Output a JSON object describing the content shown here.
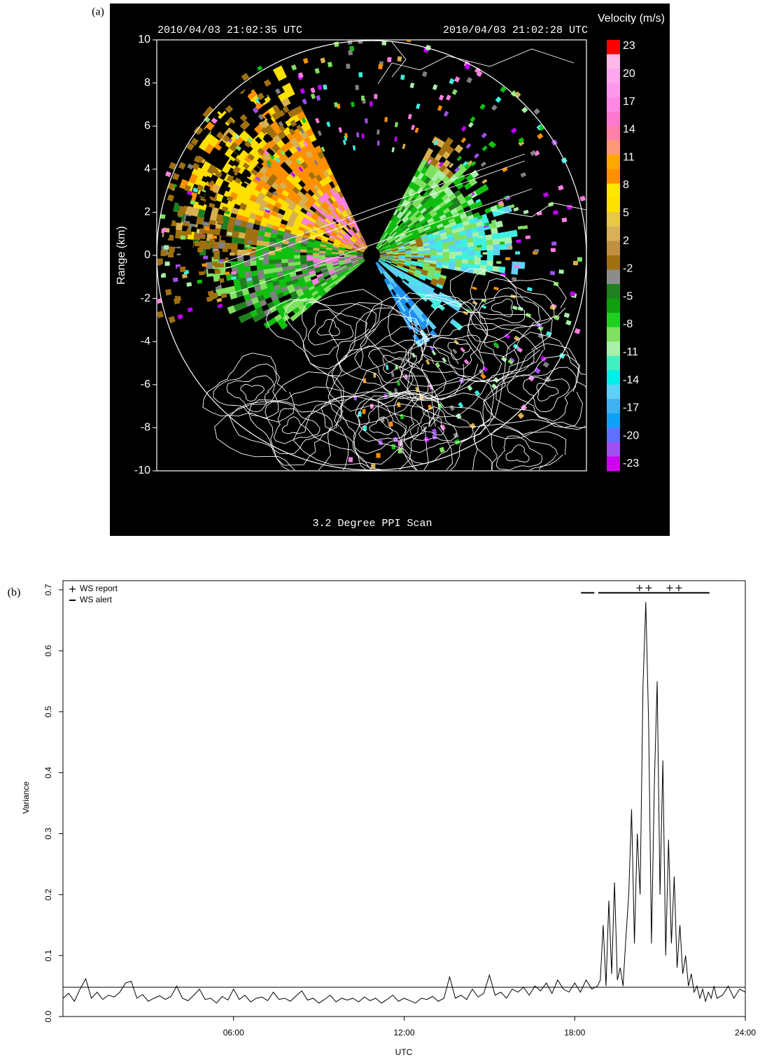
{
  "chart_data": [
    {
      "type": "ppi",
      "panel_label": "(a)",
      "timestamps": [
        "2010/04/03 21:02:35 UTC",
        "2010/04/03 21:02:28 UTC"
      ],
      "ylabel": "Range (km)",
      "ylim": [
        -10,
        10
      ],
      "yticks": [
        10,
        8,
        6,
        4,
        2,
        0,
        -2,
        -4,
        -6,
        -8,
        -10
      ],
      "colorbar": {
        "title": "Velocity (m/s)",
        "ticks": [
          23,
          20,
          17,
          14,
          11,
          8,
          5,
          2,
          -2,
          -5,
          -8,
          -11,
          -14,
          -17,
          -20,
          -23
        ],
        "colors": [
          "#ff0000",
          "#ffb8e8",
          "#ffa8f0",
          "#ff98ec",
          "#ff88e4",
          "#ff78d0",
          "#ff80a8",
          "#ff9878",
          "#ffa800",
          "#ff9000",
          "#ffe800",
          "#ffe000",
          "#e8c848",
          "#d8b058",
          "#c09040",
          "#a07010",
          "#8c8c8c",
          "#208020",
          "#10a010",
          "#20d020",
          "#80e060",
          "#a8f0a8",
          "#40f0c0",
          "#00f0e8",
          "#60d0f8",
          "#40b0f0",
          "#10a0f8",
          "#6070ff",
          "#a050f0",
          "#d000f0"
        ]
      },
      "caption": "3.2 Degree PPI Scan"
    },
    {
      "type": "line",
      "panel_label": "(b)",
      "xlabel": "UTC",
      "ylabel": "Variance",
      "xlim": [
        0,
        24
      ],
      "xticks": [
        {
          "value": 6,
          "label": "06:00"
        },
        {
          "value": 12,
          "label": "12:00"
        },
        {
          "value": 18,
          "label": "18:00"
        },
        {
          "value": 24,
          "label": "24:00"
        }
      ],
      "ylim": [
        0,
        0.715
      ],
      "yticks": [
        {
          "value": 0,
          "label": "0.0"
        },
        0.1,
        0.2,
        0.3,
        0.4,
        0.5,
        0.6,
        0.7
      ],
      "x": [
        0,
        0.2,
        0.4,
        0.6,
        0.8,
        1,
        1.2,
        1.4,
        1.6,
        1.8,
        2,
        2.2,
        2.4,
        2.6,
        2.8,
        3,
        3.2,
        3.4,
        3.6,
        3.8,
        4,
        4.2,
        4.4,
        4.6,
        4.8,
        5,
        5.2,
        5.4,
        5.6,
        5.8,
        6,
        6.2,
        6.4,
        6.6,
        6.8,
        7,
        7.2,
        7.4,
        7.6,
        7.8,
        8,
        8.2,
        8.4,
        8.6,
        8.8,
        9,
        9.2,
        9.4,
        9.6,
        9.8,
        10,
        10.2,
        10.4,
        10.6,
        10.8,
        11,
        11.2,
        11.4,
        11.6,
        11.8,
        12,
        12.2,
        12.4,
        12.6,
        12.8,
        13,
        13.2,
        13.4,
        13.6,
        13.8,
        14,
        14.2,
        14.4,
        14.6,
        14.8,
        15,
        15.2,
        15.4,
        15.6,
        15.8,
        16,
        16.2,
        16.4,
        16.6,
        16.8,
        17,
        17.2,
        17.4,
        17.6,
        17.8,
        18,
        18.2,
        18.4,
        18.6,
        18.8,
        18.9,
        19,
        19.1,
        19.2,
        19.3,
        19.4,
        19.5,
        19.6,
        19.7,
        19.8,
        19.9,
        20,
        20.1,
        20.2,
        20.3,
        20.4,
        20.5,
        20.6,
        20.7,
        20.8,
        20.9,
        21,
        21.1,
        21.2,
        21.3,
        21.4,
        21.5,
        21.6,
        21.7,
        21.8,
        21.9,
        22,
        22.1,
        22.2,
        22.3,
        22.4,
        22.5,
        22.6,
        22.7,
        22.8,
        22.9,
        23,
        23.2,
        23.4,
        23.6,
        23.8,
        24
      ],
      "series": [
        {
          "name": "Variance",
          "color": "#000000",
          "values": [
            0.03,
            0.038,
            0.025,
            0.045,
            0.062,
            0.03,
            0.04,
            0.028,
            0.035,
            0.032,
            0.04,
            0.055,
            0.058,
            0.03,
            0.036,
            0.025,
            0.03,
            0.034,
            0.028,
            0.033,
            0.05,
            0.03,
            0.026,
            0.035,
            0.045,
            0.028,
            0.03,
            0.022,
            0.033,
            0.027,
            0.045,
            0.028,
            0.035,
            0.024,
            0.03,
            0.032,
            0.026,
            0.04,
            0.028,
            0.03,
            0.025,
            0.034,
            0.042,
            0.027,
            0.03,
            0.022,
            0.028,
            0.035,
            0.024,
            0.03,
            0.027,
            0.03,
            0.024,
            0.032,
            0.026,
            0.03,
            0.022,
            0.028,
            0.035,
            0.025,
            0.03,
            0.026,
            0.022,
            0.03,
            0.028,
            0.033,
            0.025,
            0.03,
            0.065,
            0.03,
            0.035,
            0.028,
            0.045,
            0.032,
            0.038,
            0.068,
            0.035,
            0.04,
            0.03,
            0.045,
            0.04,
            0.048,
            0.035,
            0.05,
            0.042,
            0.055,
            0.038,
            0.06,
            0.045,
            0.04,
            0.055,
            0.04,
            0.06,
            0.045,
            0.05,
            0.06,
            0.15,
            0.05,
            0.19,
            0.07,
            0.22,
            0.06,
            0.08,
            0.05,
            0.13,
            0.2,
            0.34,
            0.12,
            0.3,
            0.2,
            0.54,
            0.68,
            0.48,
            0.12,
            0.38,
            0.55,
            0.2,
            0.42,
            0.1,
            0.29,
            0.12,
            0.23,
            0.08,
            0.15,
            0.07,
            0.1,
            0.05,
            0.07,
            0.04,
            0.05,
            0.03,
            0.045,
            0.025,
            0.04,
            0.03,
            0.05,
            0.03,
            0.035,
            0.05,
            0.03,
            0.045,
            0.04
          ]
        }
      ],
      "threshold": 0.048,
      "legend": [
        "WS report",
        "WS alert"
      ],
      "reports": [
        20.28,
        20.6,
        21.34,
        21.66
      ],
      "report_level": 0.703,
      "alerts": [
        [
          18.22,
          18.69
        ],
        [
          18.83,
          22.74
        ]
      ],
      "alert_level": 0.695
    }
  ]
}
